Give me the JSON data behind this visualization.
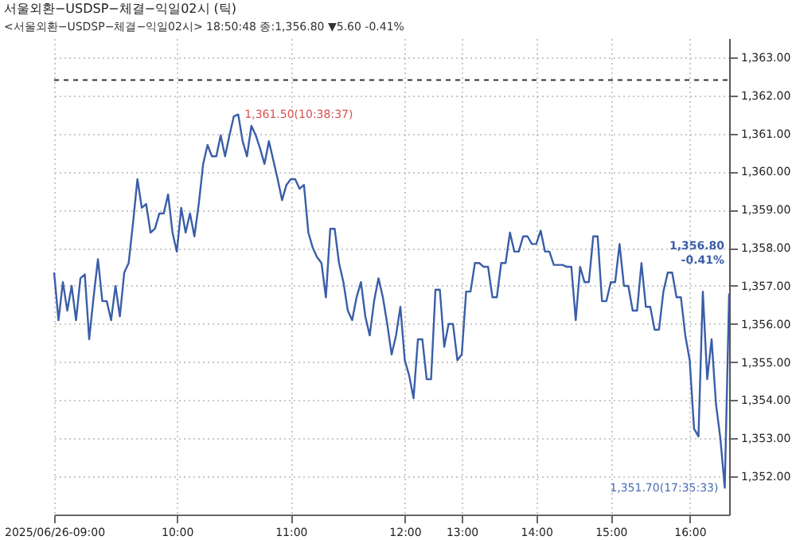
{
  "chart_data": {
    "type": "line",
    "title": "서울외환−USDSP−체결−익일02시 (틱)",
    "subtitle": "<서울외환−USDSP−체결−익일02시> 18:50:48 종:1,356.80 ▼5.60 -0.41%",
    "categories": [
      "2025/06/26-09:00",
      null,
      null,
      null,
      null,
      null,
      null,
      null,
      null,
      null,
      null,
      null,
      null,
      null,
      null,
      null,
      null,
      null,
      null,
      null,
      null,
      null,
      null,
      null,
      null,
      null,
      null,
      null,
      "10:00",
      null,
      null,
      null,
      null,
      null,
      null,
      null,
      null,
      null,
      null,
      null,
      null,
      null,
      null,
      null,
      null,
      null,
      null,
      null,
      null,
      null,
      null,
      null,
      null,
      null,
      "11:00",
      null,
      null,
      null,
      null,
      null,
      null,
      null,
      null,
      null,
      null,
      null,
      null,
      null,
      null,
      null,
      null,
      null,
      null,
      null,
      null,
      null,
      null,
      null,
      null,
      null,
      "12:00",
      null,
      null,
      null,
      null,
      null,
      null,
      null,
      null,
      null,
      null,
      null,
      null,
      "13:00",
      null,
      null,
      null,
      null,
      null,
      null,
      null,
      null,
      null,
      null,
      null,
      null,
      null,
      null,
      null,
      null,
      "14:00",
      null,
      null,
      null,
      null,
      null,
      null,
      null,
      null,
      null,
      null,
      null,
      null,
      null,
      null,
      null,
      null,
      "15:00",
      null,
      null,
      null,
      null,
      null,
      null,
      null,
      null,
      null,
      null,
      null,
      null,
      null,
      null,
      null,
      null,
      null,
      "16:00",
      null,
      null,
      null,
      null,
      null,
      null,
      null,
      null,
      null
    ],
    "values": [
      1357.35,
      1356.1,
      1357.1,
      1356.35,
      1357.0,
      1356.1,
      1357.2,
      1357.3,
      1355.6,
      1356.7,
      1357.7,
      1356.6,
      1356.6,
      1356.1,
      1357.0,
      1356.2,
      1357.35,
      1357.6,
      1358.65,
      1359.8,
      1359.05,
      1359.15,
      1358.4,
      1358.5,
      1358.9,
      1358.9,
      1359.4,
      1358.4,
      1357.9,
      1359.05,
      1358.4,
      1358.9,
      1358.3,
      1359.15,
      1360.2,
      1360.7,
      1360.4,
      1360.4,
      1360.95,
      1360.4,
      1360.95,
      1361.45,
      1361.5,
      1360.8,
      1360.4,
      1361.2,
      1360.95,
      1360.6,
      1360.2,
      1360.8,
      1360.3,
      1359.8,
      1359.25,
      1359.65,
      1359.8,
      1359.8,
      1359.55,
      1359.65,
      1358.4,
      1358.0,
      1357.75,
      1357.6,
      1356.7,
      1358.5,
      1358.5,
      1357.6,
      1357.1,
      1356.35,
      1356.1,
      1356.7,
      1357.1,
      1356.2,
      1355.7,
      1356.6,
      1357.2,
      1356.7,
      1356.0,
      1355.2,
      1355.7,
      1356.45,
      1355.05,
      1354.65,
      1354.05,
      1355.6,
      1355.6,
      1354.55,
      1354.55,
      1356.9,
      1356.9,
      1355.4,
      1356.0,
      1356.0,
      1355.05,
      1355.2,
      1356.85,
      1356.85,
      1357.6,
      1357.6,
      1357.5,
      1357.5,
      1356.7,
      1356.7,
      1357.6,
      1357.6,
      1358.4,
      1357.9,
      1357.9,
      1358.3,
      1358.3,
      1358.1,
      1358.1,
      1358.45,
      1357.9,
      1357.9,
      1357.55,
      1357.55,
      1357.55,
      1357.5,
      1357.5,
      1356.1,
      1357.5,
      1357.1,
      1357.1,
      1358.3,
      1358.3,
      1356.6,
      1356.6,
      1357.1,
      1357.1,
      1358.1,
      1357.0,
      1357.0,
      1356.35,
      1356.35,
      1357.6,
      1356.45,
      1356.45,
      1355.85,
      1355.85,
      1356.85,
      1357.35,
      1357.35,
      1356.7,
      1356.7,
      1355.7,
      1355.05,
      1353.25,
      1353.05,
      1356.85,
      1354.55,
      1355.6,
      1353.9,
      1353.0,
      1351.7,
      1356.8
    ],
    "color": "#3a5ea8",
    "ylim": [
      1351.0,
      1363.5
    ],
    "yticks": [
      {
        "value": 1352,
        "label": "1,352.00"
      },
      {
        "value": 1353,
        "label": "1,353.00"
      },
      {
        "value": 1354,
        "label": "1,354.00"
      },
      {
        "value": 1355,
        "label": "1,355.00"
      },
      {
        "value": 1356,
        "label": "1,356.00"
      },
      {
        "value": 1357,
        "label": "1,357.00"
      },
      {
        "value": 1358,
        "label": "1,358.00"
      },
      {
        "value": 1359,
        "label": "1,359.00"
      },
      {
        "value": 1360,
        "label": "1,360.00"
      },
      {
        "value": 1361,
        "label": "1,361.00"
      },
      {
        "value": 1362,
        "label": "1,362.00"
      },
      {
        "value": 1363,
        "label": "1,363.00"
      }
    ],
    "ref_lines": [
      {
        "axis": "y",
        "value": 1362.4,
        "color": "#333333",
        "line_style": "dashed"
      }
    ],
    "annotations": [
      "1,361.50(10:38:37)",
      "1,351.70(17:35:33)",
      "1,356.80 -0.41%"
    ],
    "grid": true,
    "line_style": "solid",
    "marker": "none"
  }
}
